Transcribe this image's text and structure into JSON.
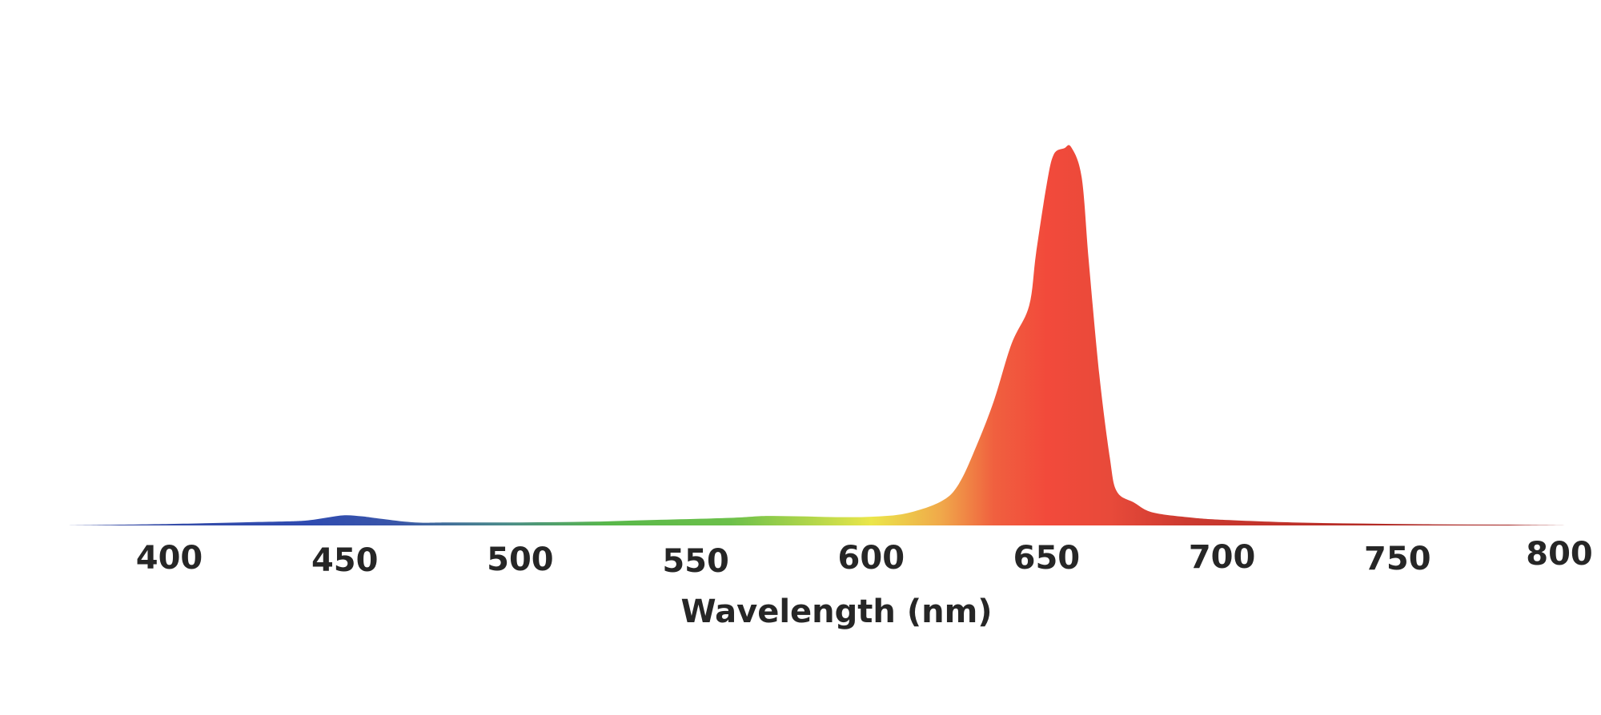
{
  "chart_data": {
    "type": "area",
    "title": "",
    "xlabel": "Wavelength (nm)",
    "ylabel": "",
    "xlim": [
      370,
      800
    ],
    "ylim": [
      0,
      1
    ],
    "grid": false,
    "legend": "none",
    "ticks": [
      400,
      450,
      500,
      550,
      600,
      650,
      700,
      750,
      800
    ],
    "tick_labels": [
      "400",
      "450",
      "500",
      "550",
      "600",
      "650",
      "700",
      "750",
      "800"
    ],
    "series": [
      {
        "x": [
          370,
          400,
          420,
          435,
          440,
          445,
          450,
          455,
          460,
          470,
          480,
          500,
          520,
          540,
          560,
          570,
          580,
          590,
          600,
          610,
          620,
          625,
          630,
          635,
          640,
          645,
          647,
          650,
          652,
          655,
          657,
          660,
          662,
          665,
          668,
          670,
          675,
          680,
          690,
          700,
          720,
          740,
          760,
          780,
          800
        ],
        "y": [
          0.0,
          0.004,
          0.008,
          0.011,
          0.014,
          0.021,
          0.027,
          0.024,
          0.018,
          0.008,
          0.008,
          0.008,
          0.01,
          0.015,
          0.02,
          0.025,
          0.024,
          0.022,
          0.023,
          0.032,
          0.064,
          0.11,
          0.21,
          0.33,
          0.48,
          0.58,
          0.72,
          0.9,
          0.98,
          0.997,
          1.0,
          0.92,
          0.7,
          0.4,
          0.18,
          0.09,
          0.06,
          0.035,
          0.022,
          0.015,
          0.008,
          0.005,
          0.003,
          0.002,
          0.0
        ]
      }
    ],
    "gradient_stops": [
      {
        "x": 370,
        "color": "#3a4da3"
      },
      {
        "x": 440,
        "color": "#2f4bb0"
      },
      {
        "x": 465,
        "color": "#3a56a8"
      },
      {
        "x": 495,
        "color": "#4a8a8a"
      },
      {
        "x": 525,
        "color": "#58b84a"
      },
      {
        "x": 560,
        "color": "#6cc04a"
      },
      {
        "x": 585,
        "color": "#b8d84a"
      },
      {
        "x": 600,
        "color": "#ebe64a"
      },
      {
        "x": 620,
        "color": "#f0a84a"
      },
      {
        "x": 635,
        "color": "#f0603f"
      },
      {
        "x": 650,
        "color": "#f24a3b"
      },
      {
        "x": 668,
        "color": "#e84a3a"
      },
      {
        "x": 690,
        "color": "#cc3a30"
      },
      {
        "x": 800,
        "color": "#9a1a1a"
      }
    ]
  }
}
